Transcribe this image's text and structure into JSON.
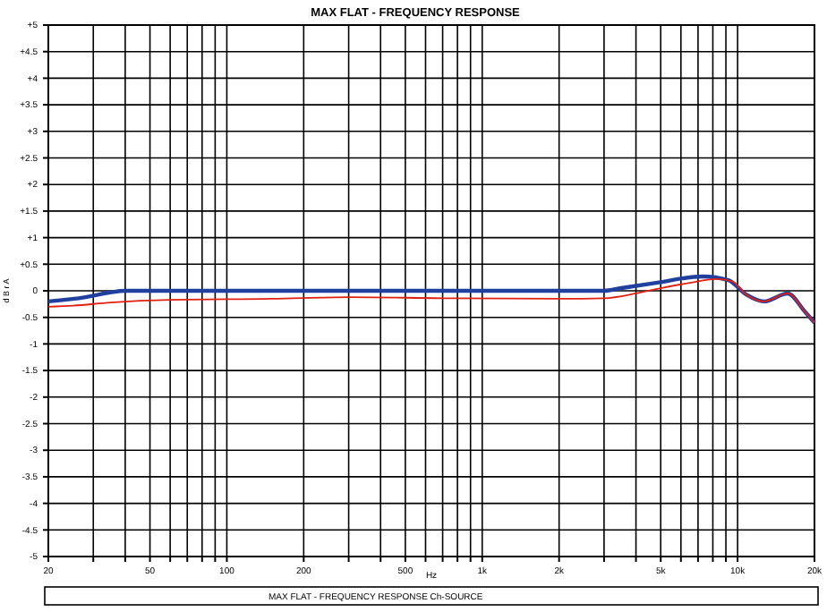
{
  "chart_data": {
    "type": "line",
    "title": "MAX FLAT - FREQUENCY RESPONSE",
    "xlabel": "Hz",
    "ylabel": "d B r A",
    "log": "x",
    "grid": true,
    "marker": "none",
    "line_style": "solid",
    "xlim": [
      20,
      20000
    ],
    "ylim": [
      -5,
      5
    ],
    "xticks": [
      20,
      {
        "value": 30,
        "label": null
      },
      {
        "value": 40,
        "label": null
      },
      50,
      {
        "value": 60,
        "label": null
      },
      {
        "value": 70,
        "label": null
      },
      {
        "value": 80,
        "label": null
      },
      {
        "value": 90,
        "label": null
      },
      100,
      200,
      {
        "value": 300,
        "label": null
      },
      {
        "value": 400,
        "label": null
      },
      500,
      {
        "value": 600,
        "label": null
      },
      {
        "value": 700,
        "label": null
      },
      {
        "value": 800,
        "label": null
      },
      {
        "value": 900,
        "label": null
      },
      {
        "value": 1000,
        "label": "1k"
      },
      {
        "value": 2000,
        "label": "2k"
      },
      {
        "value": 3000,
        "label": null
      },
      {
        "value": 4000,
        "label": null
      },
      {
        "value": 5000,
        "label": "5k"
      },
      {
        "value": 6000,
        "label": null
      },
      {
        "value": 7000,
        "label": null
      },
      {
        "value": 8000,
        "label": null
      },
      {
        "value": 9000,
        "label": null
      },
      {
        "value": 10000,
        "label": "10k"
      },
      {
        "value": 20000,
        "label": "20k"
      }
    ],
    "yticks": [
      {
        "value": 5,
        "label": "+5"
      },
      {
        "value": 4.5,
        "label": "+4.5"
      },
      {
        "value": 4,
        "label": "+4"
      },
      {
        "value": 3.5,
        "label": "+3.5"
      },
      {
        "value": 3,
        "label": "+3"
      },
      {
        "value": 2.5,
        "label": "+2.5"
      },
      {
        "value": 2,
        "label": "+2"
      },
      {
        "value": 1.5,
        "label": "+1.5"
      },
      {
        "value": 1,
        "label": "+1"
      },
      {
        "value": 0.5,
        "label": "+0.5"
      },
      0,
      -0.5,
      -1,
      -1.5,
      -2,
      -2.5,
      -3,
      -3.5,
      -4,
      -4.5,
      -5
    ],
    "series": [
      {
        "color": "#2040a0",
        "x": [
          20,
          28,
          35,
          40,
          3000,
          3500,
          4800,
          7300,
          9200,
          10800,
          12700,
          15700,
          18400,
          20000
        ],
        "values": [
          -0.2,
          -0.12,
          -0.03,
          0,
          0,
          0.05,
          0.15,
          0.27,
          0.2,
          -0.07,
          -0.2,
          -0.05,
          -0.4,
          -0.6
        ]
      },
      {
        "color": "#e02010",
        "x": [
          20,
          25,
          35,
          60,
          150,
          300,
          700,
          2000,
          3000,
          4000,
          5000,
          6500,
          8200,
          9500,
          10800,
          12700,
          15700,
          18400,
          20000
        ],
        "values": [
          -0.3,
          -0.28,
          -0.22,
          -0.17,
          -0.15,
          -0.12,
          -0.14,
          -0.15,
          -0.14,
          -0.05,
          0.05,
          0.15,
          0.22,
          0.18,
          -0.07,
          -0.2,
          -0.05,
          -0.4,
          -0.6
        ]
      }
    ],
    "annotations": [
      "MAX FLAT - FREQUENCY RESPONSE   Ch-SOURCE"
    ]
  }
}
